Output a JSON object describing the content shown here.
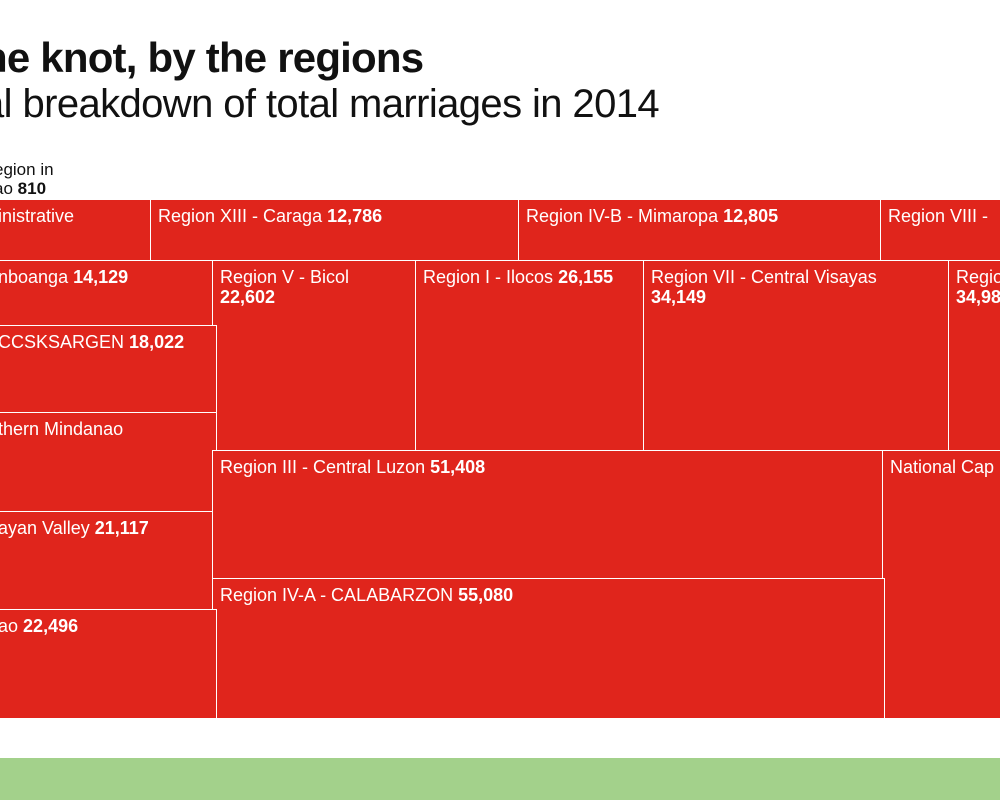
{
  "title": "he knot, by the regions",
  "subtitle": "al breakdown of total marriages in 2014",
  "colors": {
    "tile": "#e0251c",
    "tile_border": "#ffffff",
    "footer": "#a3d18b",
    "text_dark": "#111111"
  },
  "small_region": {
    "label": "egion in\nao",
    "value": "810"
  },
  "chart_data": {
    "type": "treemap",
    "items": [
      {
        "id": "admin",
        "label": "inistrative",
        "value": null,
        "value_text": ""
      },
      {
        "id": "caraga",
        "label": "Region XIII - Caraga",
        "value": 12786,
        "value_text": "12,786"
      },
      {
        "id": "mimaropa",
        "label": "Region IV-B - Mimaropa",
        "value": 12805,
        "value_text": "12,805"
      },
      {
        "id": "r8",
        "label": "Region VIII -",
        "value": null,
        "value_text": ""
      },
      {
        "id": "zamboanga",
        "label": "nboanga",
        "value": 14129,
        "value_text": "14,129"
      },
      {
        "id": "bicol",
        "label": "Region V - Bicol",
        "value": 22602,
        "value_text": "22,602"
      },
      {
        "id": "ilocos",
        "label": "Region I - Ilocos",
        "value": 26155,
        "value_text": "26,155"
      },
      {
        "id": "cvisayas",
        "label": "Region VII - Central Visayas",
        "value": 34149,
        "value_text": "34,149"
      },
      {
        "id": "r6",
        "label": "Regio",
        "value": null,
        "value_text": "34,98"
      },
      {
        "id": "soccsk",
        "label": "CCSKSARGEN",
        "value": 18022,
        "value_text": "18,022"
      },
      {
        "id": "nmindanao",
        "label": "thern Mindanao",
        "value": null,
        "value_text": ""
      },
      {
        "id": "cluzon",
        "label": "Region III - Central Luzon",
        "value": 51408,
        "value_text": "51,408"
      },
      {
        "id": "ncr",
        "label": "National Cap",
        "value": null,
        "value_text": ""
      },
      {
        "id": "cagayan",
        "label": "ayan Valley",
        "value": 21117,
        "value_text": "21,117"
      },
      {
        "id": "calabarzon",
        "label": "Region IV-A - CALABARZON",
        "value": 55080,
        "value_text": "55,080"
      },
      {
        "id": "davao",
        "label": "ao",
        "value": 22496,
        "value_text": "22,496"
      }
    ]
  }
}
